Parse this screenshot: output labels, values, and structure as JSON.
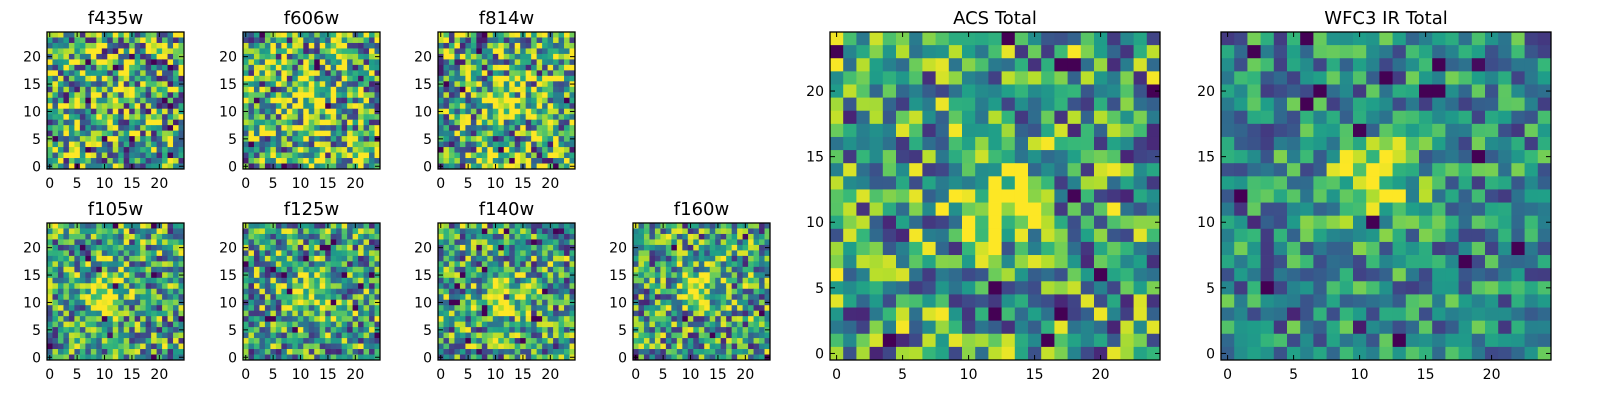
{
  "chart_data": [
    {
      "type": "heatmap",
      "title": "f435w",
      "xlim": [
        -0.5,
        24.5
      ],
      "ylim": [
        -0.5,
        24.5
      ],
      "xticks": [
        0,
        5,
        10,
        15,
        20
      ],
      "yticks": [
        0,
        5,
        10,
        15,
        20
      ],
      "colormap": "viridis",
      "grid": false,
      "grid_size": [
        25,
        25
      ],
      "source_center": null,
      "noise_level": "high"
    },
    {
      "type": "heatmap",
      "title": "f606w",
      "xlim": [
        -0.5,
        24.5
      ],
      "ylim": [
        -0.5,
        24.5
      ],
      "xticks": [
        0,
        5,
        10,
        15,
        20
      ],
      "yticks": [
        0,
        5,
        10,
        15,
        20
      ],
      "colormap": "viridis",
      "grid": false,
      "grid_size": [
        25,
        25
      ],
      "source_center": [
        12,
        12
      ],
      "noise_level": "high"
    },
    {
      "type": "heatmap",
      "title": "f814w",
      "xlim": [
        -0.5,
        24.5
      ],
      "ylim": [
        -0.5,
        24.5
      ],
      "xticks": [
        0,
        5,
        10,
        15,
        20
      ],
      "yticks": [
        0,
        5,
        10,
        15,
        20
      ],
      "colormap": "viridis",
      "grid": false,
      "grid_size": [
        25,
        25
      ],
      "source_center": [
        12,
        12
      ],
      "noise_level": "high"
    },
    {
      "type": "heatmap",
      "title": "f105w",
      "xlim": [
        -0.5,
        24.5
      ],
      "ylim": [
        -0.5,
        24.5
      ],
      "xticks": [
        0,
        5,
        10,
        15,
        20
      ],
      "yticks": [
        0,
        5,
        10,
        15,
        20
      ],
      "colormap": "viridis",
      "grid": false,
      "grid_size": [
        25,
        25
      ],
      "source_center": [
        11,
        12
      ],
      "noise_level": "medium"
    },
    {
      "type": "heatmap",
      "title": "f125w",
      "xlim": [
        -0.5,
        24.5
      ],
      "ylim": [
        -0.5,
        24.5
      ],
      "xticks": [
        0,
        5,
        10,
        15,
        20
      ],
      "yticks": [
        0,
        5,
        10,
        15,
        20
      ],
      "colormap": "viridis",
      "grid": false,
      "grid_size": [
        25,
        25
      ],
      "source_center": [
        12,
        13
      ],
      "noise_level": "medium"
    },
    {
      "type": "heatmap",
      "title": "f140w",
      "xlim": [
        -0.5,
        24.5
      ],
      "ylim": [
        -0.5,
        24.5
      ],
      "xticks": [
        0,
        5,
        10,
        15,
        20
      ],
      "yticks": [
        0,
        5,
        10,
        15,
        20
      ],
      "colormap": "viridis",
      "grid": false,
      "grid_size": [
        25,
        25
      ],
      "source_center": [
        11,
        11
      ],
      "noise_level": "medium"
    },
    {
      "type": "heatmap",
      "title": "f160w",
      "xlim": [
        -0.5,
        24.5
      ],
      "ylim": [
        -0.5,
        24.5
      ],
      "xticks": [
        0,
        5,
        10,
        15,
        20
      ],
      "yticks": [
        0,
        5,
        10,
        15,
        20
      ],
      "colormap": "viridis",
      "grid": false,
      "grid_size": [
        25,
        25
      ],
      "source_center": [
        11,
        13
      ],
      "noise_level": "medium"
    },
    {
      "type": "heatmap",
      "title": "ACS Total",
      "xlim": [
        -0.5,
        24.5
      ],
      "ylim": [
        -0.5,
        24.5
      ],
      "xticks": [
        0,
        5,
        10,
        15,
        20
      ],
      "yticks": [
        0,
        5,
        10,
        15,
        20
      ],
      "colormap": "viridis",
      "grid": false,
      "grid_size": [
        25,
        25
      ],
      "source_center": [
        12,
        12
      ],
      "noise_level": "medium"
    },
    {
      "type": "heatmap",
      "title": "WFC3 IR Total",
      "xlim": [
        -0.5,
        24.5
      ],
      "ylim": [
        -0.5,
        24.5
      ],
      "xticks": [
        0,
        5,
        10,
        15,
        20
      ],
      "yticks": [
        0,
        5,
        10,
        15,
        20
      ],
      "colormap": "viridis",
      "grid": false,
      "grid_size": [
        25,
        25
      ],
      "source_center": [
        11,
        13
      ],
      "noise_level": "low"
    }
  ]
}
